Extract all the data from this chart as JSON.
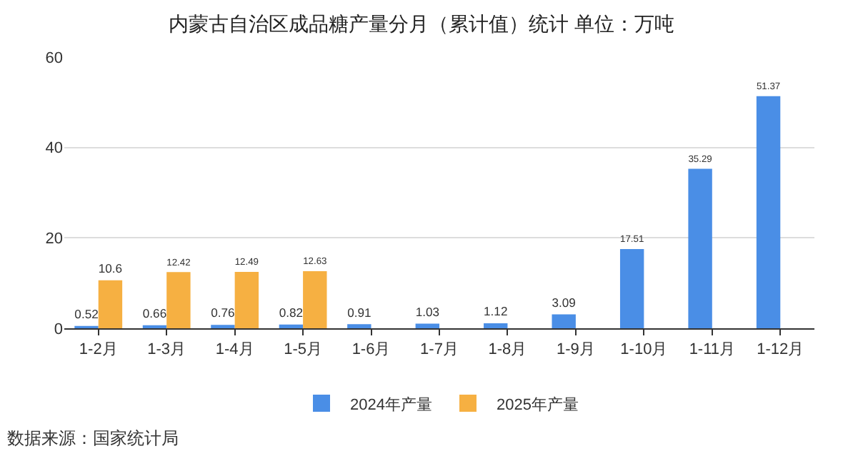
{
  "chart_data": {
    "type": "bar",
    "title": "内蒙古自治区成品糖产量分月（累计值）统计 单位：万吨",
    "categories": [
      "1-2月",
      "1-3月",
      "1-4月",
      "1-5月",
      "1-6月",
      "1-7月",
      "1-8月",
      "1-9月",
      "1-10月",
      "1-11月",
      "1-12月"
    ],
    "series": [
      {
        "name": "2024年产量",
        "color": "#4a8ee6",
        "values": [
          0.52,
          0.66,
          0.76,
          0.82,
          0.91,
          1.03,
          1.12,
          3.09,
          17.51,
          35.29,
          51.37
        ]
      },
      {
        "name": "2025年产量",
        "color": "#f6b042",
        "values": [
          10.6,
          12.42,
          12.49,
          12.63,
          null,
          null,
          null,
          null,
          null,
          null,
          null
        ]
      }
    ],
    "ylim": [
      0,
      60
    ],
    "yticks": [
      0,
      20,
      40,
      60
    ],
    "grid": "y",
    "legend": "bottom",
    "data_labels": true,
    "annotations": [
      "数据来源：国家统计局"
    ]
  }
}
